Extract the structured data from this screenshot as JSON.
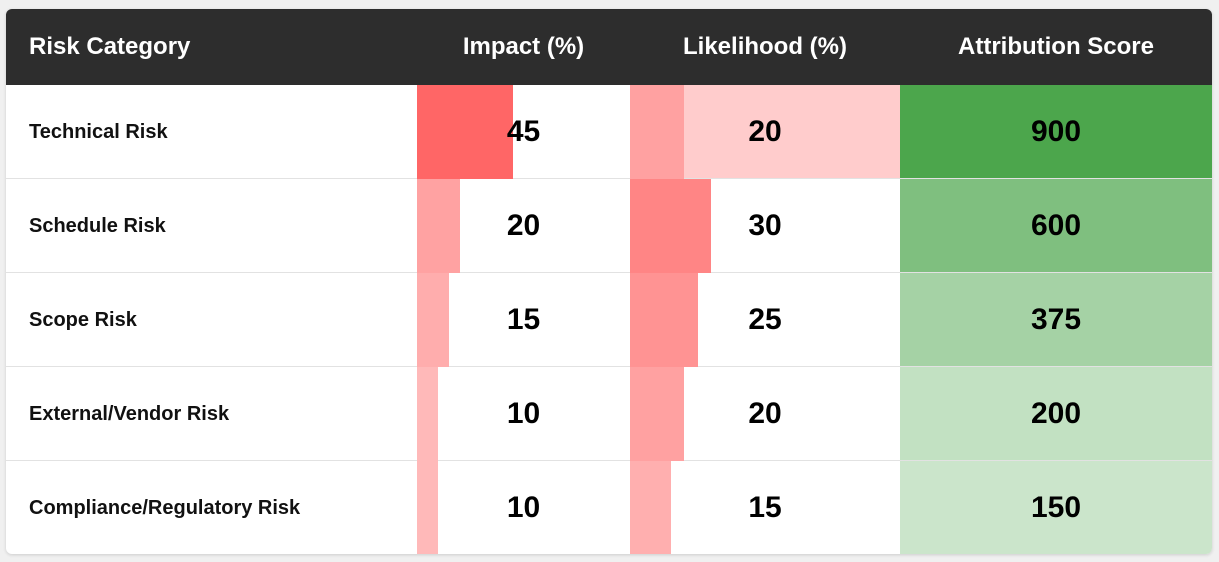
{
  "table": {
    "header": [
      "Risk Category",
      "Impact (%)",
      "Likelihood (%)",
      "Attribution Score"
    ],
    "rows": [
      [
        "Technical Risk",
        45,
        20,
        900
      ],
      [
        "Schedule Risk",
        20,
        30,
        600
      ],
      [
        "Scope Risk",
        15,
        25,
        375
      ],
      [
        "External/Vendor Risk",
        10,
        20,
        200
      ],
      [
        "Compliance/Regulatory Risk",
        10,
        15,
        150
      ]
    ]
  }
}
